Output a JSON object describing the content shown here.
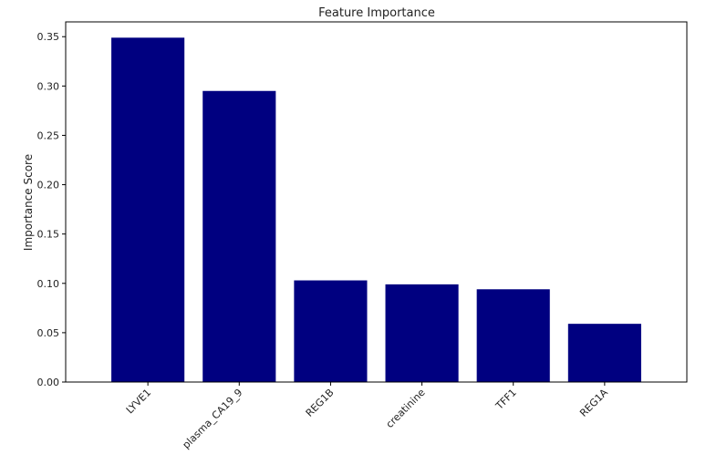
{
  "chart_data": {
    "type": "bar",
    "title": "Feature Importance",
    "xlabel": "",
    "ylabel": "Importance Score",
    "categories": [
      "LYVE1",
      "plasma_CA19_9",
      "REG1B",
      "creatinine",
      "TFF1",
      "REG1A"
    ],
    "values": [
      0.349,
      0.295,
      0.103,
      0.099,
      0.094,
      0.059
    ],
    "ylim": [
      0,
      0.365
    ],
    "yticks": [
      0.0,
      0.05,
      0.1,
      0.15,
      0.2,
      0.25,
      0.3,
      0.35
    ],
    "ytick_labels": [
      "0.00",
      "0.05",
      "0.10",
      "0.15",
      "0.20",
      "0.25",
      "0.30",
      "0.35"
    ],
    "grid": false,
    "legend": "none",
    "bar_color": "#000080"
  }
}
